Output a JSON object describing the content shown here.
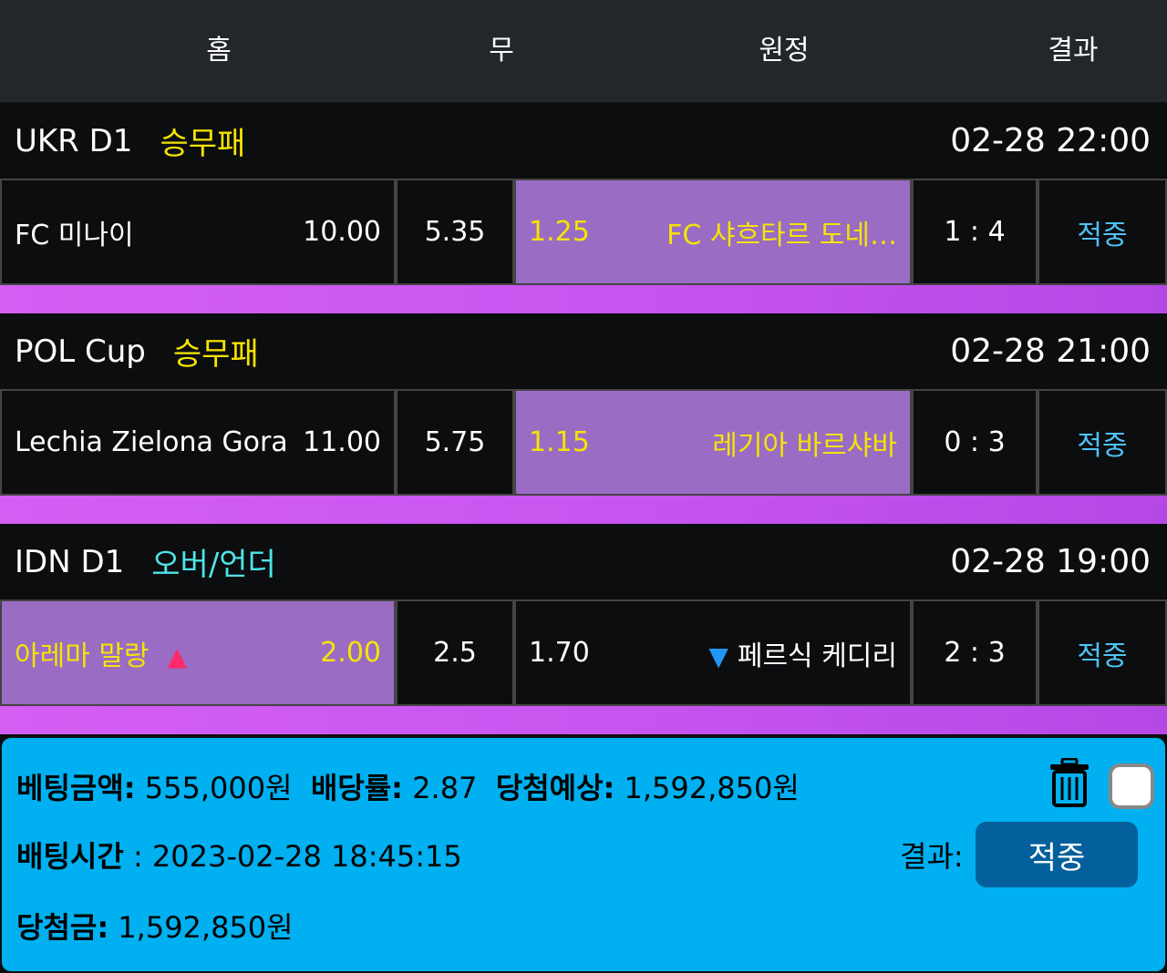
{
  "header": {
    "home": "홈",
    "draw": "무",
    "away": "원정",
    "result": "결과"
  },
  "matches": [
    {
      "league": "UKR D1",
      "bet_type": "승무패",
      "time": "02-28 22:00",
      "home": "FC 미나이",
      "home_odds": "10.00",
      "draw": "5.35",
      "away_odds": "1.25",
      "away": "FC 샤흐타르 도네…",
      "score": "1 : 4",
      "result": "적중",
      "selected": "away"
    },
    {
      "league": "POL Cup",
      "bet_type": "승무패",
      "time": "02-28 21:00",
      "home": "Lechia Zielona Gora",
      "home_odds": "11.00",
      "draw": "5.75",
      "away_odds": "1.15",
      "away": "레기아 바르샤바",
      "score": "0 : 3",
      "result": "적중",
      "selected": "away"
    },
    {
      "league": "IDN D1",
      "bet_type": "오버/언더",
      "time": "02-28 19:00",
      "home": "아레마 말랑",
      "home_odds": "2.00",
      "draw": "2.5",
      "away_odds": "1.70",
      "away": "페르식 케디리",
      "score": "2 : 3",
      "result": "적중",
      "selected": "home",
      "home_icon": "arrow-up-icon",
      "away_icon": "arrow-down-icon"
    }
  ],
  "summary": {
    "bet_amount_label": "베팅금액:",
    "bet_amount": "555,000원",
    "odds_label": "배당률:",
    "odds": "2.87",
    "expected_label": "당첨예상:",
    "expected": "1,592,850원",
    "bet_time_label": "배팅시간",
    "bet_time": ": 2023-02-28 18:45:15",
    "result_label": "결과:",
    "result": "적중",
    "win_label": "당첨금:",
    "win": "1,592,850원"
  },
  "colors": {
    "selected": "#9a6cc4",
    "strip": "#d55ff5",
    "summary": "#00b0f0",
    "hit": "#4fc3f7",
    "button": "#04609c"
  }
}
